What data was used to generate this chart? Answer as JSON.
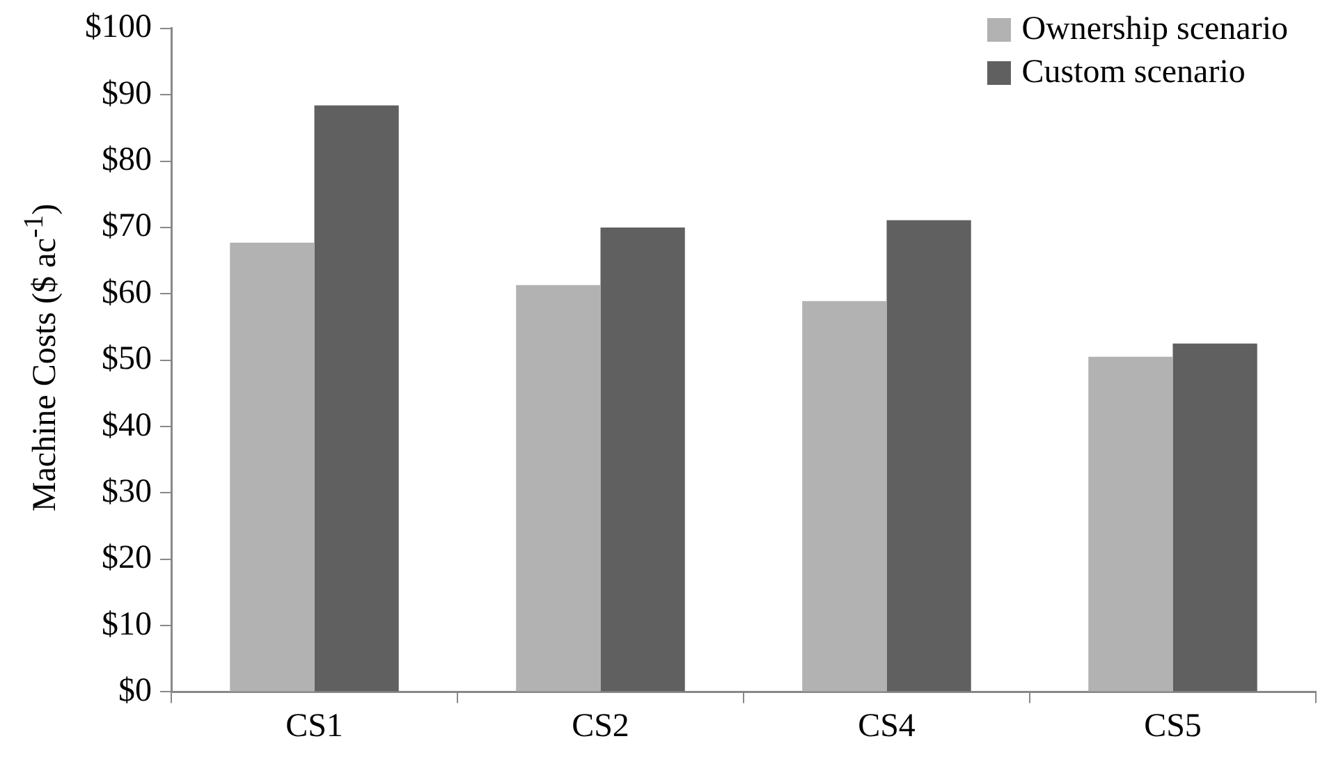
{
  "chart_data": {
    "type": "bar",
    "ylabel": "Machine Costs ($ ac$^{-1}$)",
    "categories": [
      "CS1",
      "CS2",
      "CS4",
      "CS5"
    ],
    "series": [
      {
        "name": "Ownership scenario",
        "color": "#b2b2b2",
        "values": [
          67.7,
          61.3,
          58.9,
          50.5
        ]
      },
      {
        "name": "Custom scenario",
        "color": "#606060",
        "values": [
          88.4,
          70.0,
          71.1,
          52.5
        ]
      }
    ],
    "ylim": [
      0,
      100
    ],
    "yticks": [
      {
        "value": 0,
        "label": "$0"
      },
      {
        "value": 10,
        "label": "$10"
      },
      {
        "value": 20,
        "label": "$20"
      },
      {
        "value": 30,
        "label": "$30"
      },
      {
        "value": 40,
        "label": "$40"
      },
      {
        "value": 50,
        "label": "$50"
      },
      {
        "value": 60,
        "label": "$60"
      },
      {
        "value": 70,
        "label": "$70"
      },
      {
        "value": 80,
        "label": "$80"
      },
      {
        "value": 90,
        "label": "$90"
      },
      {
        "value": 100,
        "label": "$100"
      }
    ],
    "grid": false,
    "legend": "top right"
  }
}
